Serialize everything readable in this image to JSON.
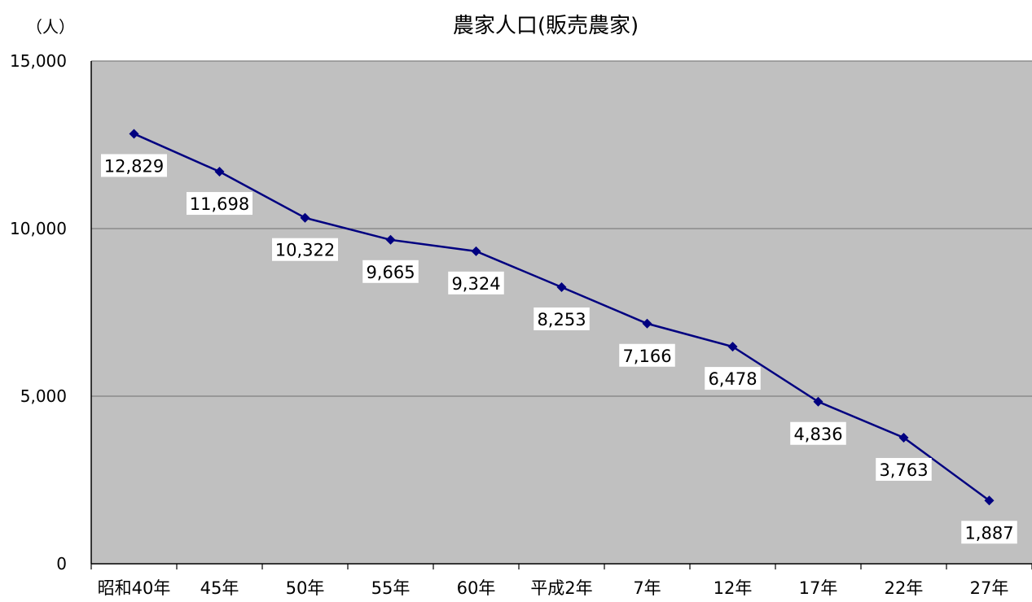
{
  "chart_data": {
    "type": "line",
    "title": "農家人口(販売農家)",
    "ylabel": "（人）",
    "xlabel": "",
    "categories": [
      "昭和40年",
      "45年",
      "50年",
      "55年",
      "60年",
      "平成2年",
      "7年",
      "12年",
      "17年",
      "22年",
      "27年"
    ],
    "series": [
      {
        "values": [
          12829,
          11698,
          10322,
          9665,
          9324,
          8253,
          7166,
          6478,
          4836,
          3763,
          1887
        ],
        "labels": [
          "12,829",
          "11,698",
          "10,322",
          "9,665",
          "9,324",
          "8,253",
          "7,166",
          "6,478",
          "4,836",
          "3,763",
          "1,887"
        ],
        "color": "#000080"
      }
    ],
    "yticks": [
      0,
      5000,
      10000,
      15000
    ],
    "ytick_labels": [
      "0",
      "5,000",
      "10,000",
      "15,000"
    ],
    "ylim": [
      0,
      15000
    ],
    "grid": true,
    "legend": "none",
    "plot_background": "#c0c0c0"
  }
}
